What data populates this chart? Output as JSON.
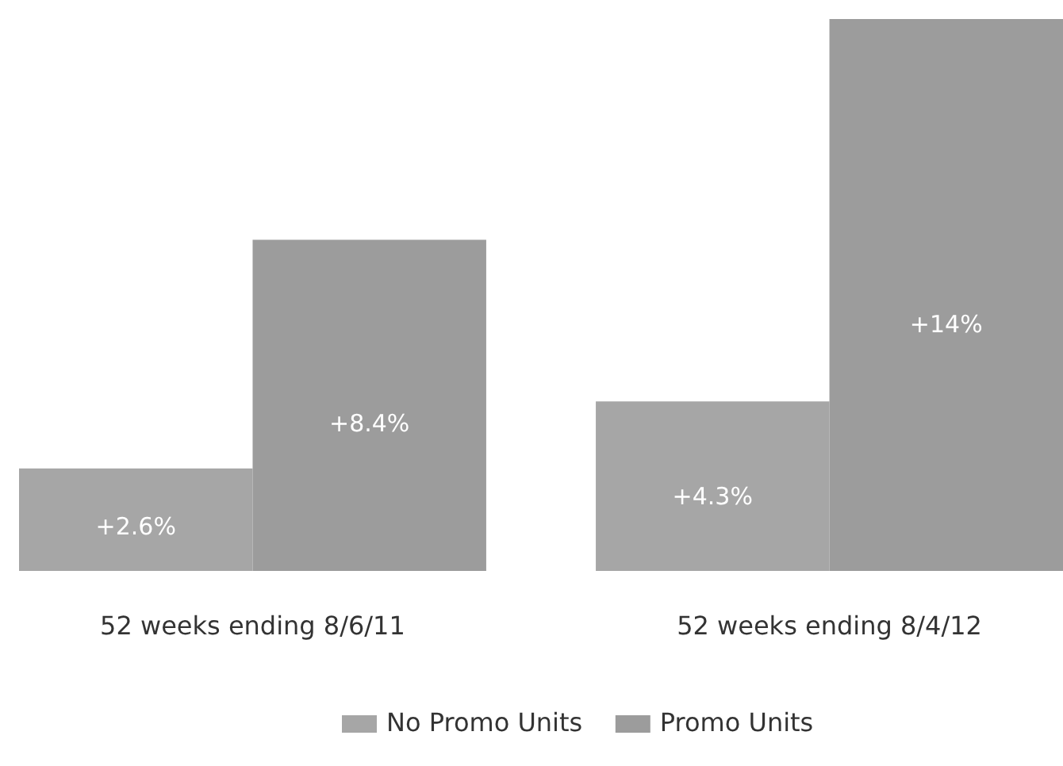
{
  "chart_data": {
    "type": "bar",
    "categories": [
      "52 weeks ending 8/6/11",
      "52 weeks ending 8/4/12"
    ],
    "series": [
      {
        "name": "No Promo Units",
        "color": "#a6a6a6",
        "values": [
          2.6,
          4.3
        ],
        "value_labels": [
          "+2.6%",
          "+4.3%"
        ]
      },
      {
        "name": "Promo Units",
        "color": "#9c9c9c",
        "values": [
          8.4,
          14
        ],
        "value_labels": [
          "+8.4%",
          "+14%"
        ]
      }
    ],
    "legend": "bottom"
  }
}
